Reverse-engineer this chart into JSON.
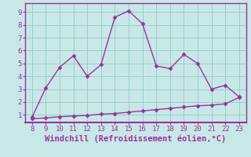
{
  "x": [
    8,
    9,
    10,
    11,
    12,
    13,
    14,
    15,
    16,
    17,
    18,
    19,
    20,
    21,
    22,
    23
  ],
  "y_main": [
    0.8,
    3.1,
    4.7,
    5.6,
    4.0,
    4.9,
    8.6,
    9.1,
    8.1,
    4.8,
    4.6,
    5.7,
    5.0,
    3.0,
    3.3,
    2.4
  ],
  "y_line": [
    0.7,
    0.75,
    0.85,
    0.9,
    0.95,
    1.05,
    1.1,
    1.2,
    1.3,
    1.4,
    1.5,
    1.6,
    1.7,
    1.75,
    1.85,
    2.35
  ],
  "line_color": "#993399",
  "bg_color": "#c8e8e8",
  "grid_color": "#99cccc",
  "xlabel": "Windchill (Refroidissement éolien,°C)",
  "xlim": [
    7.5,
    23.5
  ],
  "ylim": [
    0.4,
    9.7
  ],
  "yticks": [
    1,
    2,
    3,
    4,
    5,
    6,
    7,
    8,
    9
  ],
  "xticks": [
    8,
    9,
    10,
    11,
    12,
    13,
    14,
    15,
    16,
    17,
    18,
    19,
    20,
    21,
    22,
    23
  ],
  "marker": "D",
  "markersize": 2.5,
  "linewidth": 1.0,
  "xlabel_fontsize": 7.5,
  "tick_fontsize": 6.5,
  "xlabel_color": "#993399",
  "tick_color": "#993399",
  "spine_color": "#993399"
}
